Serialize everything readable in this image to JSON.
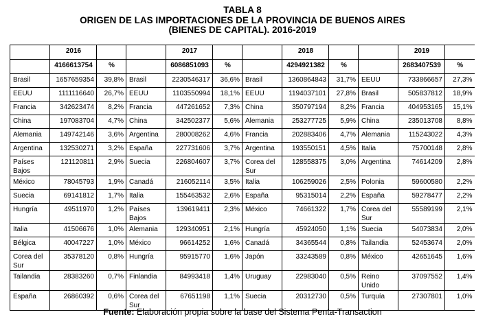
{
  "title": {
    "line1": "TABLA 8",
    "line2": "ORIGEN DE LAS IMPORTACIONES DE LA PROVINCIA DE BUENOS AIRES",
    "line3": "(BIENES DE CAPITAL). 2016-2019"
  },
  "years": [
    {
      "year": "2016",
      "total": "4166613754",
      "pct_label": "%"
    },
    {
      "year": "2017",
      "total": "6086851093",
      "pct_label": "%"
    },
    {
      "year": "2018",
      "total": "4294921382",
      "pct_label": "%"
    },
    {
      "year": "2019",
      "total": "2683407539",
      "pct_label": "%"
    }
  ],
  "rows": [
    [
      [
        "Brasil",
        "1657659354",
        "39,8%"
      ],
      [
        "Brasil",
        "2230546317",
        "36,6%"
      ],
      [
        "Brasil",
        "1360864843",
        "31,7%"
      ],
      [
        "EEUU",
        "733866657",
        "27,3%"
      ]
    ],
    [
      [
        "EEUU",
        "1111116640",
        "26,7%"
      ],
      [
        "EEUU",
        "1103550994",
        "18,1%"
      ],
      [
        "EEUU",
        "1194037101",
        "27,8%"
      ],
      [
        "Brasil",
        "505837812",
        "18,9%"
      ]
    ],
    [
      [
        "Francia",
        "342623474",
        "8,2%"
      ],
      [
        "Francia",
        "447261652",
        "7,3%"
      ],
      [
        "China",
        "350797194",
        "8,2%"
      ],
      [
        "Francia",
        "404953165",
        "15,1%"
      ]
    ],
    [
      [
        "China",
        "197083704",
        "4,7%"
      ],
      [
        "China",
        "342502377",
        "5,6%"
      ],
      [
        "Alemania",
        "253277725",
        "5,9%"
      ],
      [
        "China",
        "235013708",
        "8,8%"
      ]
    ],
    [
      [
        "Alemania",
        "149742146",
        "3,6%"
      ],
      [
        "Argentina",
        "280008262",
        "4,6%"
      ],
      [
        "Francia",
        "202883406",
        "4,7%"
      ],
      [
        "Alemania",
        "115243022",
        "4,3%"
      ]
    ],
    [
      [
        "Argentina",
        "132530271",
        "3,2%"
      ],
      [
        "España",
        "227731606",
        "3,7%"
      ],
      [
        "Argentina",
        "193550151",
        "4,5%"
      ],
      [
        "Italia",
        "75700148",
        "2,8%"
      ]
    ],
    [
      [
        "Países Bajos",
        "121120811",
        "2,9%"
      ],
      [
        "Suecia",
        "226804607",
        "3,7%"
      ],
      [
        "Corea del Sur",
        "128558375",
        "3,0%"
      ],
      [
        "Argentina",
        "74614209",
        "2,8%"
      ]
    ],
    [
      [
        "México",
        "78045793",
        "1,9%"
      ],
      [
        "Canadá",
        "216052114",
        "3,5%"
      ],
      [
        "Italia",
        "106259026",
        "2,5%"
      ],
      [
        "Polonia",
        "59600580",
        "2,2%"
      ]
    ],
    [
      [
        "Suecia",
        "69141812",
        "1,7%"
      ],
      [
        "Italia",
        "155463532",
        "2,6%"
      ],
      [
        "España",
        "95315014",
        "2,2%"
      ],
      [
        "España",
        "59278477",
        "2,2%"
      ]
    ],
    [
      [
        "Hungría",
        "49511970",
        "1,2%"
      ],
      [
        "Países Bajos",
        "139619411",
        "2,3%"
      ],
      [
        "México",
        "74661322",
        "1,7%"
      ],
      [
        "Corea del Sur",
        "55589199",
        "2,1%"
      ]
    ],
    [
      [
        "Italia",
        "41506676",
        "1,0%"
      ],
      [
        "Alemania",
        "129340951",
        "2,1%"
      ],
      [
        "Hungría",
        "45924050",
        "1,1%"
      ],
      [
        "Suecia",
        "54073834",
        "2,0%"
      ]
    ],
    [
      [
        "Bélgica",
        "40047227",
        "1,0%"
      ],
      [
        "México",
        "96614252",
        "1,6%"
      ],
      [
        "Canadá",
        "34365544",
        "0,8%"
      ],
      [
        "Tailandia",
        "52453674",
        "2,0%"
      ]
    ],
    [
      [
        "Corea del Sur",
        "35378120",
        "0,8%"
      ],
      [
        "Hungría",
        "95915770",
        "1,6%"
      ],
      [
        "Japón",
        "33243589",
        "0,8%"
      ],
      [
        "México",
        "42651645",
        "1,6%"
      ]
    ],
    [
      [
        "Tailandia",
        "28383260",
        "0,7%"
      ],
      [
        "Finlandia",
        "84993418",
        "1,4%"
      ],
      [
        "Uruguay",
        "22983040",
        "0,5%"
      ],
      [
        "Reino Unido",
        "37097552",
        "1,4%"
      ]
    ],
    [
      [
        "España",
        "26860392",
        "0,6%"
      ],
      [
        "Corea del Sur",
        "67651198",
        "1,1%"
      ],
      [
        "Suecia",
        "20312730",
        "0,5%"
      ],
      [
        "Turquía",
        "27307801",
        "1,0%"
      ]
    ]
  ],
  "source": {
    "label": "Fuente:",
    "text": " Elaboración propia sobre la base del Sistema Penta-Transaction"
  }
}
